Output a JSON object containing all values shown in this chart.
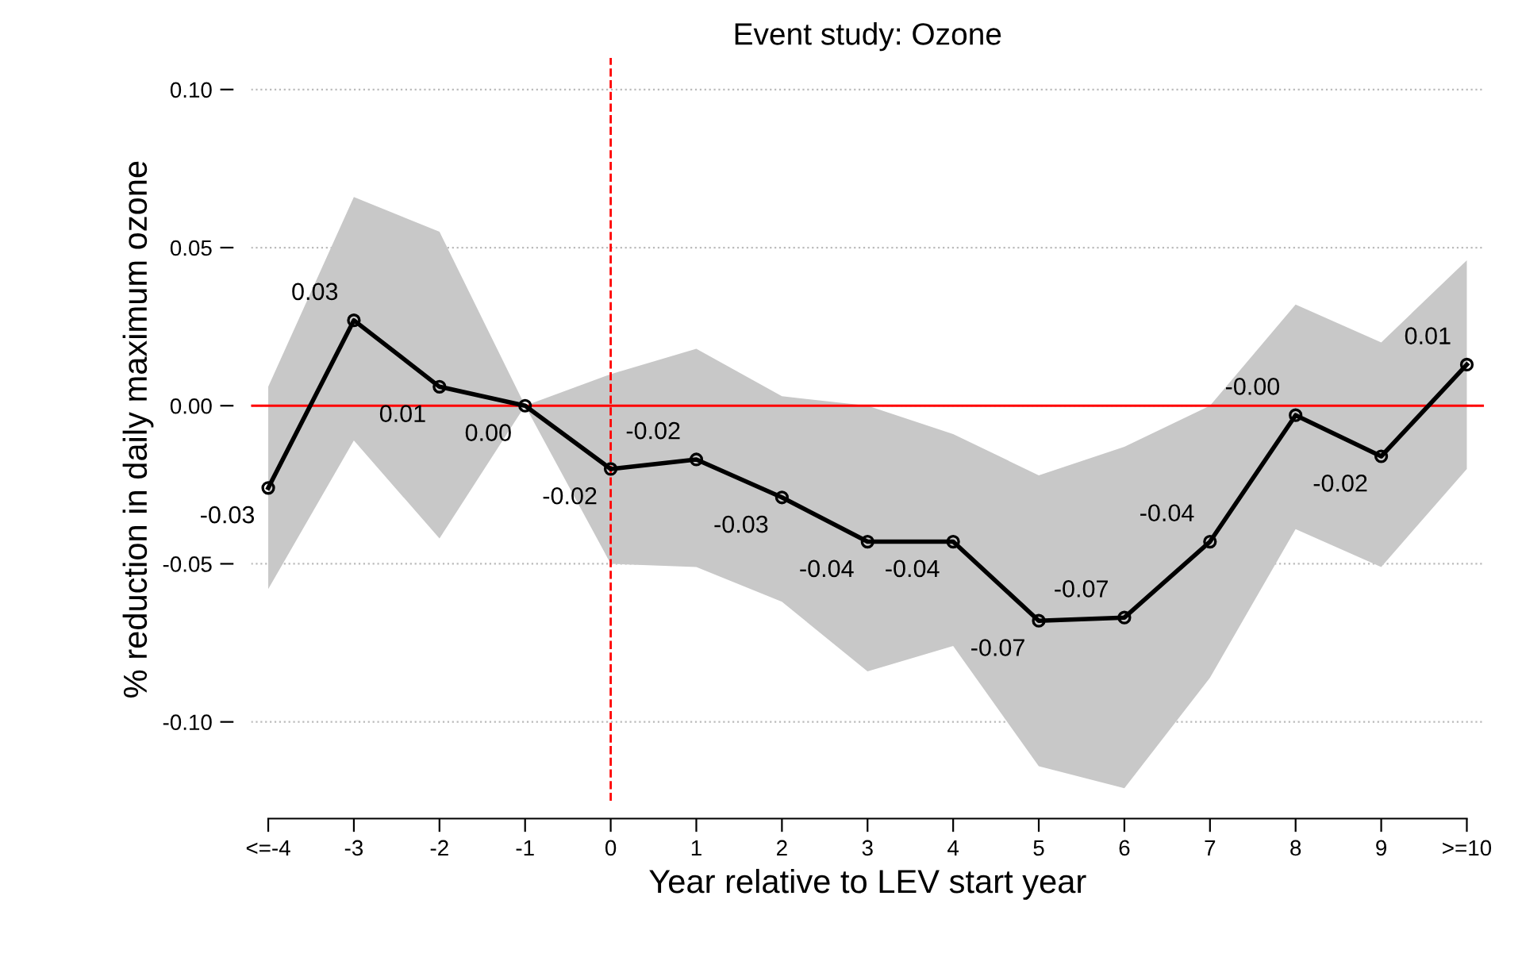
{
  "chart_data": {
    "type": "line",
    "title": "Event study: Ozone",
    "xlabel": "Year relative to LEV start year",
    "ylabel": "% reduction in daily maximum ozone",
    "categories": [
      "<=-4",
      "-3",
      "-2",
      "-1",
      "0",
      "1",
      "2",
      "3",
      "4",
      "5",
      "6",
      "7",
      "8",
      "9",
      ">=10"
    ],
    "series": [
      {
        "color": "#000000",
        "marker": "circle",
        "values": [
          -0.026,
          0.027,
          0.006,
          0.0,
          -0.02,
          -0.017,
          -0.029,
          -0.043,
          -0.043,
          -0.068,
          -0.067,
          -0.043,
          -0.003,
          -0.016,
          0.013
        ],
        "lower": [
          -0.058,
          -0.011,
          -0.042,
          0.0,
          -0.05,
          -0.051,
          -0.062,
          -0.084,
          -0.076,
          -0.114,
          -0.121,
          -0.086,
          -0.039,
          -0.051,
          -0.02
        ],
        "upper": [
          0.006,
          0.066,
          0.055,
          0.0,
          0.01,
          0.018,
          0.003,
          0.0,
          -0.009,
          -0.022,
          -0.013,
          0.0,
          0.032,
          0.02,
          0.046
        ],
        "value_labels": [
          "-0.03",
          "0.03",
          "0.01",
          "0.00",
          "-0.02",
          "-0.02",
          "-0.03",
          "-0.04",
          "-0.04",
          "-0.07",
          "-0.07",
          "-0.04",
          "-0.00",
          "-0.02",
          "0.01"
        ]
      }
    ],
    "ylim": [
      -0.125,
      0.11
    ],
    "yticks": [
      {
        "value": 0.1,
        "label": "0.10"
      },
      {
        "value": 0.05,
        "label": "0.05"
      },
      {
        "value": 0,
        "label": "0.00"
      },
      {
        "value": -0.05,
        "label": "-0.05"
      },
      {
        "value": -0.1,
        "label": "-0.10"
      }
    ],
    "grid": "y",
    "legend": false,
    "ref_lines": [
      {
        "axis": "y",
        "value": 0,
        "color": "#ff0000",
        "line_style": "solid"
      },
      {
        "axis": "x",
        "value": "0",
        "color": "#ff0000",
        "line_style": "dashed"
      }
    ]
  }
}
